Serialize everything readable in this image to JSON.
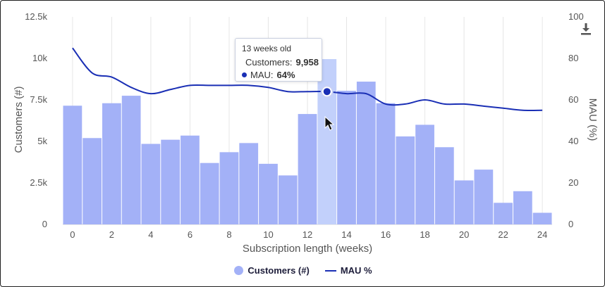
{
  "chart_data": {
    "type": "bar",
    "xlabel": "Subscription length (weeks)",
    "ylabel": "Customers (#)",
    "y2label": "MAU (%)",
    "x": [
      0,
      1,
      2,
      3,
      4,
      5,
      6,
      7,
      8,
      9,
      10,
      11,
      12,
      13,
      14,
      15,
      16,
      17,
      18,
      19,
      20,
      21,
      22,
      23,
      24
    ],
    "xticks": [
      "0",
      "2",
      "4",
      "6",
      "8",
      "10",
      "12",
      "14",
      "16",
      "18",
      "20",
      "22",
      "24"
    ],
    "xtick_values": [
      0,
      2,
      4,
      6,
      8,
      10,
      12,
      14,
      16,
      18,
      20,
      22,
      24
    ],
    "ylim": [
      0,
      12500
    ],
    "yticks": [
      "0",
      "2.5k",
      "5k",
      "7.5k",
      "10k",
      "12.5k"
    ],
    "ytick_values": [
      0,
      2500,
      5000,
      7500,
      10000,
      12500
    ],
    "y2lim": [
      0,
      100
    ],
    "y2ticks": [
      "0",
      "20",
      "40",
      "60",
      "80",
      "100"
    ],
    "y2tick_values": [
      0,
      20,
      40,
      60,
      80,
      100
    ],
    "series": [
      {
        "name": "Customers (#)",
        "type": "bar",
        "color": "#a3b1f7",
        "highlight_color": "#c2d0fb",
        "values": [
          7150,
          5200,
          7300,
          7750,
          4850,
          5100,
          5350,
          3700,
          4350,
          4900,
          3650,
          2950,
          6650,
          9958,
          8050,
          8600,
          7300,
          5300,
          6000,
          4650,
          2650,
          3300,
          1300,
          2000,
          700
        ]
      },
      {
        "name": "MAU %",
        "type": "line",
        "color": "#1a2fb5",
        "values": [
          85,
          73,
          71,
          66,
          63,
          65,
          67,
          67,
          67,
          67,
          66,
          64,
          64,
          64,
          63,
          63,
          58,
          58,
          60,
          58,
          58,
          57,
          56,
          55,
          55
        ]
      }
    ],
    "grid": "vertical"
  },
  "tooltip": {
    "title": "13 weeks old",
    "customers_label": "Customers:",
    "customers_value": "9,958",
    "mau_label": "MAU:",
    "mau_value": "64%",
    "highlight_index": 13
  },
  "legend": {
    "customers": "Customers (#)",
    "mau": "MAU %"
  },
  "icons": {
    "download": "download-icon",
    "cursor": "mouse-pointer-icon"
  },
  "colors": {
    "bar": "#a3b1f7",
    "bar_highlight": "#c2d0fb",
    "line": "#1a2fb5",
    "grid": "#e6e6e6",
    "axis_text": "#555555"
  }
}
